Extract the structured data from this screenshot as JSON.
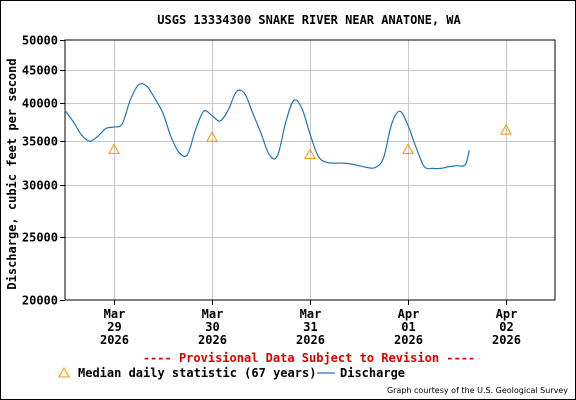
{
  "chart_data": {
    "type": "line",
    "title": "USGS 13334300 SNAKE RIVER NEAR ANATONE, WA",
    "ylabel": "Discharge, cubic feet per second",
    "xlabel": "",
    "y_scale": "log",
    "ylim": [
      20000,
      50000
    ],
    "yticks": [
      20000,
      25000,
      30000,
      35000,
      40000,
      45000,
      50000
    ],
    "ytick_labels": [
      "20000",
      "25000",
      "30000",
      "35000",
      "40000",
      "45000",
      "50000"
    ],
    "xlim": [
      "2026-03-28 12:00",
      "2026-04-02 12:00"
    ],
    "xticks": [
      {
        "x": "2026-03-29 00:00",
        "lines": [
          "Mar",
          "29",
          "2026"
        ]
      },
      {
        "x": "2026-03-30 00:00",
        "lines": [
          "Mar",
          "30",
          "2026"
        ]
      },
      {
        "x": "2026-03-31 00:00",
        "lines": [
          "Mar",
          "31",
          "2026"
        ]
      },
      {
        "x": "2026-04-01 00:00",
        "lines": [
          "Apr",
          "01",
          "2026"
        ]
      },
      {
        "x": "2026-04-02 00:00",
        "lines": [
          "Apr",
          "02",
          "2026"
        ]
      }
    ],
    "grid": true,
    "series": [
      {
        "name": "Discharge",
        "kind": "line",
        "color": "#1f77b4",
        "points": [
          [
            "2026-03-28 12:00",
            39000
          ],
          [
            "2026-03-28 14:00",
            37500
          ],
          [
            "2026-03-28 16:00",
            35800
          ],
          [
            "2026-03-28 18:00",
            35000
          ],
          [
            "2026-03-28 20:00",
            35600
          ],
          [
            "2026-03-28 22:00",
            36600
          ],
          [
            "2026-03-29 00:00",
            36800
          ],
          [
            "2026-03-29 02:00",
            37200
          ],
          [
            "2026-03-29 04:00",
            40500
          ],
          [
            "2026-03-29 06:00",
            42700
          ],
          [
            "2026-03-29 08:00",
            42500
          ],
          [
            "2026-03-29 10:00",
            40700
          ],
          [
            "2026-03-29 12:00",
            38600
          ],
          [
            "2026-03-29 14:00",
            35500
          ],
          [
            "2026-03-29 16:00",
            33600
          ],
          [
            "2026-03-29 18:00",
            33400
          ],
          [
            "2026-03-29 20:00",
            36500
          ],
          [
            "2026-03-29 22:00",
            38900
          ],
          [
            "2026-03-30 00:00",
            38300
          ],
          [
            "2026-03-30 02:00",
            37600
          ],
          [
            "2026-03-30 04:00",
            39100
          ],
          [
            "2026-03-30 06:00",
            41700
          ],
          [
            "2026-03-30 08:00",
            41400
          ],
          [
            "2026-03-30 10:00",
            38600
          ],
          [
            "2026-03-30 12:00",
            36000
          ],
          [
            "2026-03-30 14:00",
            33400
          ],
          [
            "2026-03-30 16:00",
            33200
          ],
          [
            "2026-03-30 18:00",
            37300
          ],
          [
            "2026-03-30 20:00",
            40400
          ],
          [
            "2026-03-30 22:00",
            39300
          ],
          [
            "2026-03-31 00:00",
            35900
          ],
          [
            "2026-03-31 02:00",
            33200
          ],
          [
            "2026-03-31 04:00",
            32500
          ],
          [
            "2026-03-31 06:00",
            32400
          ],
          [
            "2026-03-31 08:00",
            32400
          ],
          [
            "2026-03-31 10:00",
            32300
          ],
          [
            "2026-03-31 12:00",
            32100
          ],
          [
            "2026-03-31 14:00",
            31900
          ],
          [
            "2026-03-31 16:00",
            31900
          ],
          [
            "2026-03-31 18:00",
            33000
          ],
          [
            "2026-03-31 20:00",
            37200
          ],
          [
            "2026-03-31 22:00",
            38900
          ],
          [
            "2026-04-01 00:00",
            37000
          ],
          [
            "2026-04-01 02:00",
            34200
          ],
          [
            "2026-04-01 04:00",
            32000
          ],
          [
            "2026-04-01 06:00",
            31800
          ],
          [
            "2026-04-01 08:00",
            31800
          ],
          [
            "2026-04-01 10:00",
            32000
          ],
          [
            "2026-04-01 12:00",
            32100
          ],
          [
            "2026-04-01 14:00",
            32200
          ],
          [
            "2026-04-01 15:00",
            33900
          ]
        ]
      },
      {
        "name": "Median daily statistic (67 years)",
        "kind": "marker",
        "marker": "triangle",
        "color": "#e89a00",
        "points": [
          [
            "2026-03-29 00:00",
            34000
          ],
          [
            "2026-03-30 00:00",
            35500
          ],
          [
            "2026-03-31 00:00",
            33400
          ],
          [
            "2026-04-01 00:00",
            34000
          ],
          [
            "2026-04-02 00:00",
            36400
          ]
        ]
      }
    ],
    "legend": {
      "placement": "bottom",
      "items": [
        {
          "label": "Median daily statistic (67 years)",
          "symbol": "triangle",
          "color": "#e89a00"
        },
        {
          "label": "Discharge",
          "symbol": "line",
          "color": "#1f77b4"
        }
      ]
    },
    "annotations": {
      "provisional": "---- Provisional Data Subject to Revision ----",
      "provisional_color": "#dd0000",
      "credit": "Graph courtesy of the U.S. Geological Survey"
    }
  }
}
